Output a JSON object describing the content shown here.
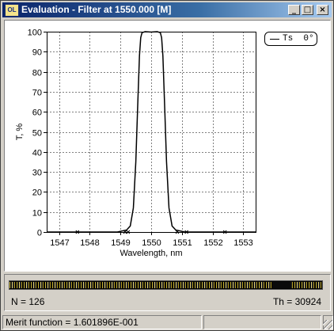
{
  "window": {
    "title": "Evaluation - Filter at 1550.000 [M]",
    "app_icon": "OL",
    "buttons": {
      "minimize": "_",
      "maximize": "□",
      "close": "×"
    }
  },
  "plot": {
    "legend": "Ts  0°",
    "chart_data": {
      "type": "line",
      "xlabel": "Wavelength, nm",
      "ylabel": "T, %",
      "xlim": [
        1546.6,
        1553.4
      ],
      "ylim": [
        0,
        100
      ],
      "xticks": [
        1547,
        1548,
        1549,
        1550,
        1551,
        1552,
        1553
      ],
      "yticks": [
        0,
        10,
        20,
        30,
        40,
        50,
        60,
        70,
        80,
        90,
        100
      ],
      "grid": true,
      "legend_position": "top-right",
      "series": [
        {
          "name": "Ts  0°",
          "color": "#000000",
          "x": [
            1546.6,
            1547.0,
            1548.0,
            1548.9,
            1549.2,
            1549.32,
            1549.42,
            1549.5,
            1549.56,
            1549.62,
            1549.66,
            1549.7,
            1549.8,
            1550.0,
            1550.2,
            1550.3,
            1550.34,
            1550.38,
            1550.44,
            1550.5,
            1550.58,
            1550.68,
            1550.8,
            1551.1,
            1552.0,
            1553.0,
            1553.4
          ],
          "y": [
            0,
            0,
            0,
            0,
            1,
            3,
            12,
            35,
            62,
            88,
            97,
            99.5,
            100,
            99.8,
            100,
            99.5,
            97,
            88,
            62,
            35,
            12,
            3,
            1,
            0,
            0,
            0,
            0
          ]
        }
      ],
      "markers": {
        "symbol": "x",
        "x": [
          1547.6,
          1549.15,
          1549.25,
          1550.85,
          1551.15,
          1552.4
        ],
        "y": [
          0,
          0,
          0,
          0,
          0,
          0
        ]
      }
    }
  },
  "stats": {
    "n": "N = 126",
    "th": "Th = 30924"
  },
  "status": {
    "merit": "Merit function =  1.601896E-001"
  }
}
